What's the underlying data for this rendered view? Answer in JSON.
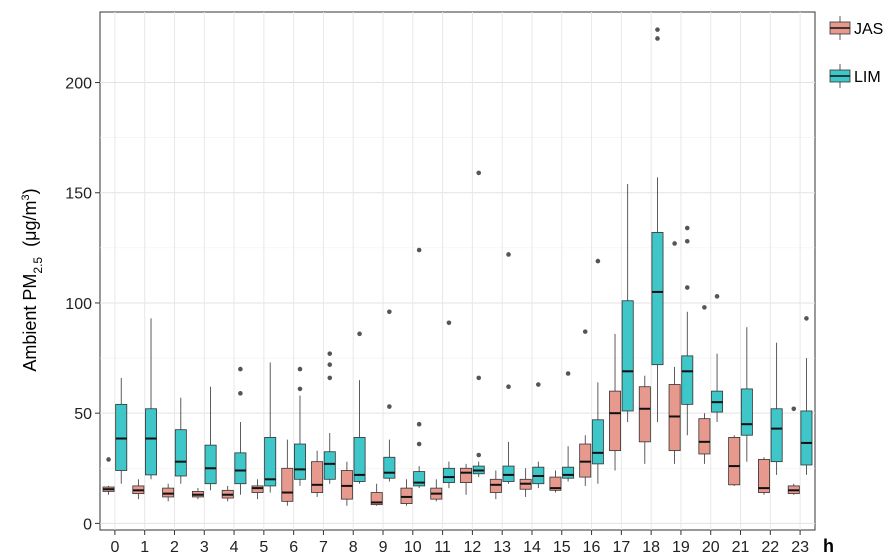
{
  "chart_data": {
    "type": "box",
    "ylabel_main": "Ambient PM",
    "ylabel_sub": "2.5",
    "ylabel_unit_pre": "(μg/m",
    "ylabel_unit_sup": "3",
    "ylabel_unit_post": ")",
    "xlabel": "h",
    "ylim": [
      -3,
      232
    ],
    "yticks": [
      0,
      50,
      100,
      150,
      200
    ],
    "grid": true,
    "legend_position": "right-top",
    "colors": {
      "JAS": "#e8998d",
      "LIM": "#3ec6c9"
    },
    "categories": [
      "0",
      "1",
      "2",
      "3",
      "4",
      "5",
      "6",
      "7",
      "8",
      "9",
      "10",
      "11",
      "12",
      "13",
      "14",
      "15",
      "16",
      "17",
      "18",
      "19",
      "20",
      "21",
      "22",
      "23"
    ],
    "series": [
      {
        "name": "JAS",
        "boxes": [
          {
            "min": 13,
            "q1": 14.5,
            "median": 15.5,
            "q3": 16.5,
            "max": 17,
            "outliers": [
              29
            ]
          },
          {
            "min": 11,
            "q1": 13.5,
            "median": 15,
            "q3": 17,
            "max": 20,
            "outliers": []
          },
          {
            "min": 10,
            "q1": 12,
            "median": 13.5,
            "q3": 16,
            "max": 18,
            "outliers": []
          },
          {
            "min": 11,
            "q1": 12,
            "median": 13,
            "q3": 14.5,
            "max": 16,
            "outliers": []
          },
          {
            "min": 10,
            "q1": 11.5,
            "median": 13,
            "q3": 15,
            "max": 17,
            "outliers": []
          },
          {
            "min": 11,
            "q1": 14,
            "median": 16,
            "q3": 17,
            "max": 20,
            "outliers": []
          },
          {
            "min": 8,
            "q1": 10,
            "median": 14,
            "q3": 25,
            "max": 38,
            "outliers": []
          },
          {
            "min": 12,
            "q1": 14,
            "median": 17.5,
            "q3": 28,
            "max": 33,
            "outliers": []
          },
          {
            "min": 8,
            "q1": 11,
            "median": 17,
            "q3": 24,
            "max": 28,
            "outliers": []
          },
          {
            "min": 8,
            "q1": 8.5,
            "median": 9.5,
            "q3": 14,
            "max": 18,
            "outliers": []
          },
          {
            "min": 8,
            "q1": 9,
            "median": 12,
            "q3": 16,
            "max": 20,
            "outliers": []
          },
          {
            "min": 10,
            "q1": 11,
            "median": 13.5,
            "q3": 16,
            "max": 20,
            "outliers": []
          },
          {
            "min": 13,
            "q1": 18.5,
            "median": 23,
            "q3": 25,
            "max": 27,
            "outliers": []
          },
          {
            "min": 11,
            "q1": 14,
            "median": 17.5,
            "q3": 20,
            "max": 24,
            "outliers": []
          },
          {
            "min": 12,
            "q1": 15.5,
            "median": 18,
            "q3": 20,
            "max": 25,
            "outliers": []
          },
          {
            "min": 14,
            "q1": 15,
            "median": 16,
            "q3": 21,
            "max": 24,
            "outliers": []
          },
          {
            "min": 17,
            "q1": 21,
            "median": 28,
            "q3": 36,
            "max": 40,
            "outliers": [
              87
            ]
          },
          {
            "min": 24,
            "q1": 33,
            "median": 50,
            "q3": 60,
            "max": 86,
            "outliers": []
          },
          {
            "min": 27,
            "q1": 37,
            "median": 52,
            "q3": 62,
            "max": 67,
            "outliers": []
          },
          {
            "min": 27,
            "q1": 33,
            "median": 48.5,
            "q3": 63,
            "max": 71,
            "outliers": [
              127
            ]
          },
          {
            "min": 27,
            "q1": 31.5,
            "median": 37,
            "q3": 47.5,
            "max": 50,
            "outliers": [
              98
            ]
          },
          {
            "min": 17,
            "q1": 17.5,
            "median": 26,
            "q3": 39,
            "max": 40,
            "outliers": []
          },
          {
            "min": 13,
            "q1": 14,
            "median": 16,
            "q3": 29,
            "max": 30,
            "outliers": []
          },
          {
            "min": 13,
            "q1": 13.5,
            "median": 15,
            "q3": 17,
            "max": 18,
            "outliers": [
              52
            ]
          }
        ]
      },
      {
        "name": "LIM",
        "boxes": [
          {
            "min": 18,
            "q1": 24,
            "median": 38.5,
            "q3": 54,
            "max": 66,
            "outliers": []
          },
          {
            "min": 20,
            "q1": 22,
            "median": 38.5,
            "q3": 52,
            "max": 93,
            "outliers": []
          },
          {
            "min": 18,
            "q1": 21.5,
            "median": 28,
            "q3": 42.5,
            "max": 57,
            "outliers": []
          },
          {
            "min": 15,
            "q1": 18,
            "median": 25,
            "q3": 35.5,
            "max": 62,
            "outliers": []
          },
          {
            "min": 13,
            "q1": 18,
            "median": 24,
            "q3": 32,
            "max": 46,
            "outliers": [
              59,
              70
            ]
          },
          {
            "min": 14,
            "q1": 17,
            "median": 20,
            "q3": 39,
            "max": 73,
            "outliers": []
          },
          {
            "min": 17,
            "q1": 20,
            "median": 24.5,
            "q3": 36,
            "max": 58,
            "outliers": [
              61,
              70
            ]
          },
          {
            "min": 18,
            "q1": 20,
            "median": 27,
            "q3": 32.5,
            "max": 41,
            "outliers": [
              66,
              72,
              77
            ]
          },
          {
            "min": 18,
            "q1": 19,
            "median": 22,
            "q3": 39,
            "max": 65,
            "outliers": [
              86
            ]
          },
          {
            "min": 19,
            "q1": 20.5,
            "median": 23,
            "q3": 30,
            "max": 38,
            "outliers": [
              53,
              96
            ]
          },
          {
            "min": 16,
            "q1": 17,
            "median": 18.5,
            "q3": 23.5,
            "max": 26,
            "outliers": [
              36,
              45,
              124
            ]
          },
          {
            "min": 16,
            "q1": 18.5,
            "median": 21,
            "q3": 25,
            "max": 28,
            "outliers": [
              91
            ]
          },
          {
            "min": 21,
            "q1": 22.5,
            "median": 24,
            "q3": 26,
            "max": 28,
            "outliers": [
              31,
              66,
              159
            ]
          },
          {
            "min": 18,
            "q1": 19,
            "median": 22,
            "q3": 26,
            "max": 37,
            "outliers": [
              62,
              122
            ]
          },
          {
            "min": 16,
            "q1": 18,
            "median": 21.5,
            "q3": 25.5,
            "max": 28,
            "outliers": [
              63
            ]
          },
          {
            "min": 19,
            "q1": 20.5,
            "median": 22,
            "q3": 25.5,
            "max": 35,
            "outliers": [
              68
            ]
          },
          {
            "min": 18,
            "q1": 27,
            "median": 32,
            "q3": 47,
            "max": 64,
            "outliers": [
              119
            ]
          },
          {
            "min": 46,
            "q1": 51,
            "median": 69,
            "q3": 101,
            "max": 154,
            "outliers": []
          },
          {
            "min": 46,
            "q1": 72,
            "median": 105,
            "q3": 132,
            "max": 157,
            "outliers": [
              220,
              224
            ]
          },
          {
            "min": 40,
            "q1": 54,
            "median": 69,
            "q3": 76,
            "max": 96,
            "outliers": [
              107,
              128,
              134
            ]
          },
          {
            "min": 46,
            "q1": 50.5,
            "median": 55,
            "q3": 60,
            "max": 77,
            "outliers": [
              103
            ]
          },
          {
            "min": 28,
            "q1": 40,
            "median": 45,
            "q3": 61,
            "max": 89,
            "outliers": []
          },
          {
            "min": 22,
            "q1": 28,
            "median": 43,
            "q3": 52,
            "max": 82,
            "outliers": []
          },
          {
            "min": 22,
            "q1": 26.5,
            "median": 36.5,
            "q3": 51,
            "max": 75,
            "outliers": [
              93
            ]
          }
        ]
      }
    ]
  }
}
